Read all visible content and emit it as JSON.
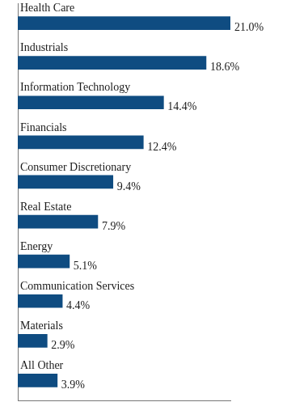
{
  "chart_data": {
    "type": "bar",
    "orientation": "horizontal",
    "categories": [
      "Health Care",
      "Industrials",
      "Information Technology",
      "Financials",
      "Consumer Discretionary",
      "Real Estate",
      "Energy",
      "Communication Services",
      "Materials",
      "All Other"
    ],
    "values": [
      21.0,
      18.6,
      14.4,
      12.4,
      9.4,
      7.9,
      5.1,
      4.4,
      2.9,
      3.9
    ],
    "value_labels": [
      "21.0%",
      "18.6%",
      "14.4%",
      "12.4%",
      "9.4%",
      "7.9%",
      "5.1%",
      "4.4%",
      "2.9%",
      "3.9%"
    ],
    "color": "#0f4c81",
    "xlim": [
      0,
      21
    ],
    "data_labels": true,
    "tick_labels": false,
    "grid": false
  }
}
